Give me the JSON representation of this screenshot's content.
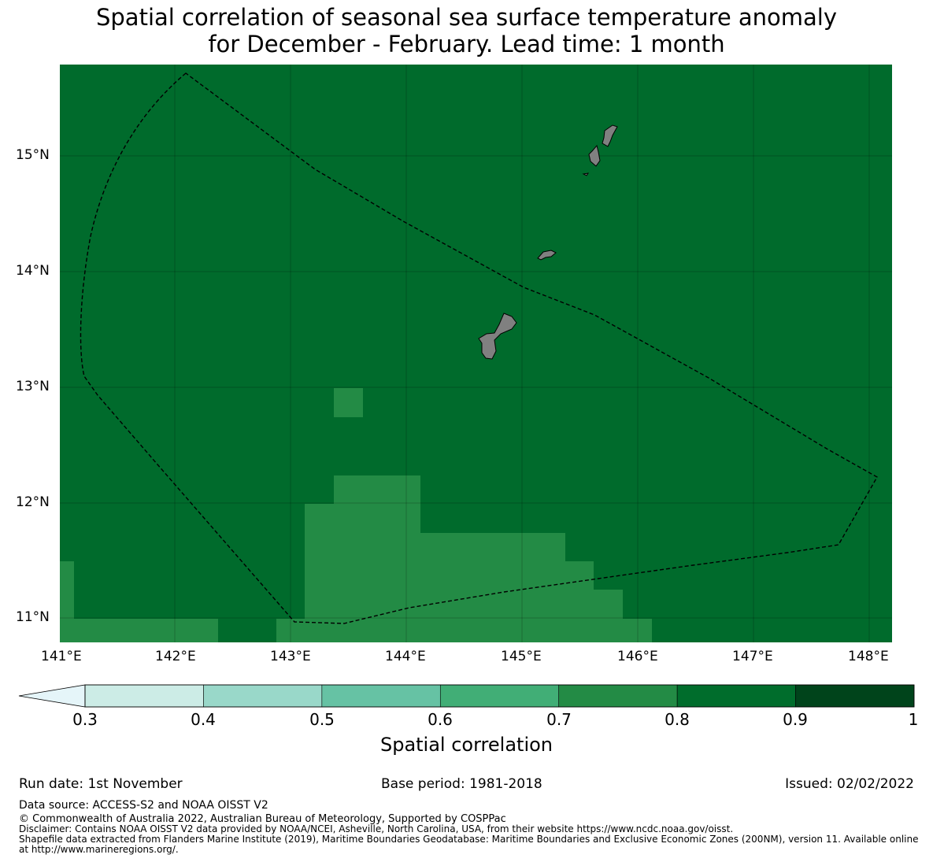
{
  "title": {
    "line1": "Spatial correlation of seasonal sea surface temperature anomaly",
    "line2": "for December - February. Lead time: 1 month"
  },
  "map": {
    "longitude_ticks": [
      "141°E",
      "142°E",
      "143°E",
      "144°E",
      "145°E",
      "146°E",
      "147°E",
      "148°E"
    ],
    "latitude_ticks": [
      "15°N",
      "14°N",
      "13°N",
      "12°N",
      "11°N"
    ],
    "field_color": "#006b2c",
    "lower_class_color": "#238b45",
    "land_color": "#808080",
    "boundary_color": "#000000"
  },
  "colorbar": {
    "label": "Spatial correlation",
    "ticks": [
      "0.3",
      "0.4",
      "0.5",
      "0.6",
      "0.7",
      "0.8",
      "0.9",
      "1"
    ],
    "colors": [
      "#e5f5f9",
      "#ccece6",
      "#99d8c9",
      "#66c2a4",
      "#41ae76",
      "#238b45",
      "#006d2c",
      "#00441b"
    ]
  },
  "footer": {
    "run_date": "Run date: 1st November",
    "base_period": "Base period: 1981-2018",
    "issued": "Issued: 02/02/2022",
    "data_source": "Data source: ACCESS-S2 and NOAA OISST V2",
    "copyright": "© Commonwealth of Australia 2022, Australian Bureau of Meteorology, Supported by COSPPac",
    "disclaimer": "Disclaimer: Contains NOAA OISST V2 data provided by NOAA/NCEI, Asheville, North Carolina, USA, from their website https://www.ncdc.noaa.gov/oisst.",
    "shapefile_line1": "Shapefile data extracted from Flanders Marine Institute (2019), Maritime Boundaries Geodatabase: Maritime Boundaries and Exclusive Economic Zones (200NM), version 11. Available online",
    "shapefile_line2": "at http://www.marineregions.org/."
  }
}
